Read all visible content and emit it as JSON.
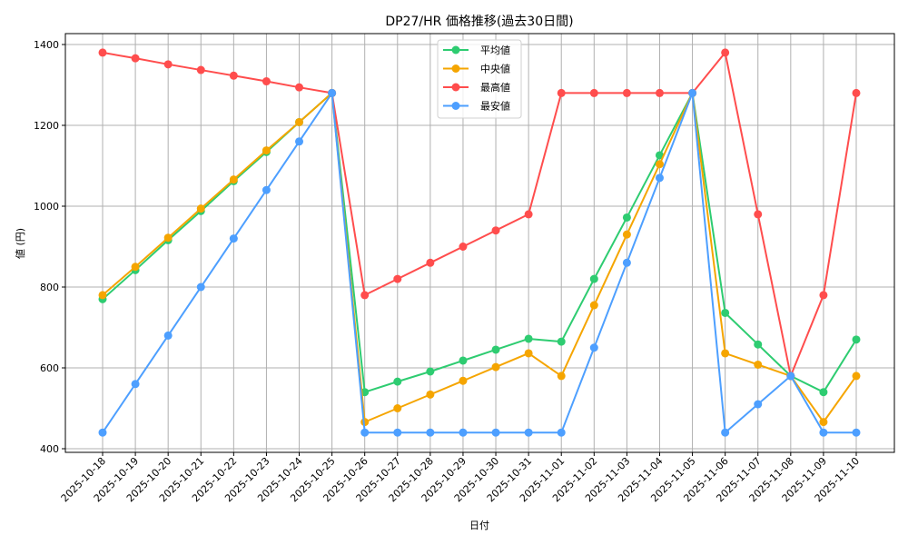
{
  "chart_data": {
    "type": "line",
    "title": "DP27/HR 価格推移(過去30日間)",
    "xlabel": "日付",
    "ylabel": "値 (円)",
    "ylim": [
      391,
      1427
    ],
    "yticks": [
      400,
      600,
      800,
      1000,
      1200,
      1400
    ],
    "grid": true,
    "legend_position": "upper center",
    "categories": [
      "2025-10-18",
      "2025-10-19",
      "2025-10-20",
      "2025-10-21",
      "2025-10-22",
      "2025-10-23",
      "2025-10-24",
      "2025-10-25",
      "2025-10-26",
      "2025-10-27",
      "2025-10-28",
      "2025-10-29",
      "2025-10-30",
      "2025-10-31",
      "2025-11-01",
      "2025-11-02",
      "2025-11-03",
      "2025-11-04",
      "2025-11-05",
      "2025-11-06",
      "2025-11-07",
      "2025-11-08",
      "2025-11-09",
      "2025-11-10"
    ],
    "series": [
      {
        "name": "平均値",
        "color": "#2ecc71",
        "values": [
          770,
          842,
          916,
          988,
          1062,
          1134,
          1208,
          1280,
          540,
          566,
          591,
          618,
          645,
          672,
          665,
          820,
          972,
          1126,
          1280,
          736,
          658,
          580,
          540,
          670
        ]
      },
      {
        "name": "中央値",
        "color": "#f5a500",
        "values": [
          780,
          850,
          922,
          994,
          1066,
          1138,
          1208,
          1280,
          466,
          500,
          534,
          568,
          602,
          636,
          580,
          755,
          930,
          1104,
          1280,
          636,
          608,
          580,
          466,
          580
        ]
      },
      {
        "name": "最高値",
        "color": "#ff4d4d",
        "values": [
          1380,
          1366,
          1351,
          1337,
          1323,
          1309,
          1294,
          1280,
          780,
          820,
          860,
          900,
          940,
          980,
          1280,
          1280,
          1280,
          1280,
          1280,
          1380,
          980,
          580,
          780,
          1280
        ]
      },
      {
        "name": "最安値",
        "color": "#4d9fff",
        "values": [
          440,
          560,
          680,
          800,
          920,
          1040,
          1160,
          1280,
          440,
          440,
          440,
          440,
          440,
          440,
          440,
          650,
          860,
          1070,
          1280,
          440,
          510,
          580,
          440,
          440
        ]
      }
    ]
  }
}
